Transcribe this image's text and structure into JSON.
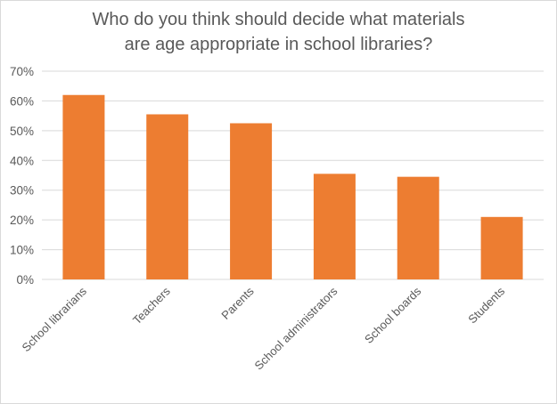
{
  "chart_data": {
    "type": "bar",
    "title_lines": [
      "Who do you think should decide what materials",
      "are age appropriate in school libraries?"
    ],
    "categories": [
      "School librarians",
      "Teachers",
      "Parents",
      "School administrators",
      "School boards",
      "Students"
    ],
    "values": [
      62,
      55.5,
      52.5,
      35.5,
      34.5,
      21
    ],
    "ylim": [
      0,
      70
    ],
    "yticks": [
      "0%",
      "10%",
      "20%",
      "30%",
      "40%",
      "50%",
      "60%",
      "70%"
    ],
    "xlabel": "",
    "ylabel": "",
    "grid": true,
    "legend": "none",
    "bar_color": "#ED7D31",
    "grid_color": "#d9d9d9",
    "text_color": "#595959"
  }
}
